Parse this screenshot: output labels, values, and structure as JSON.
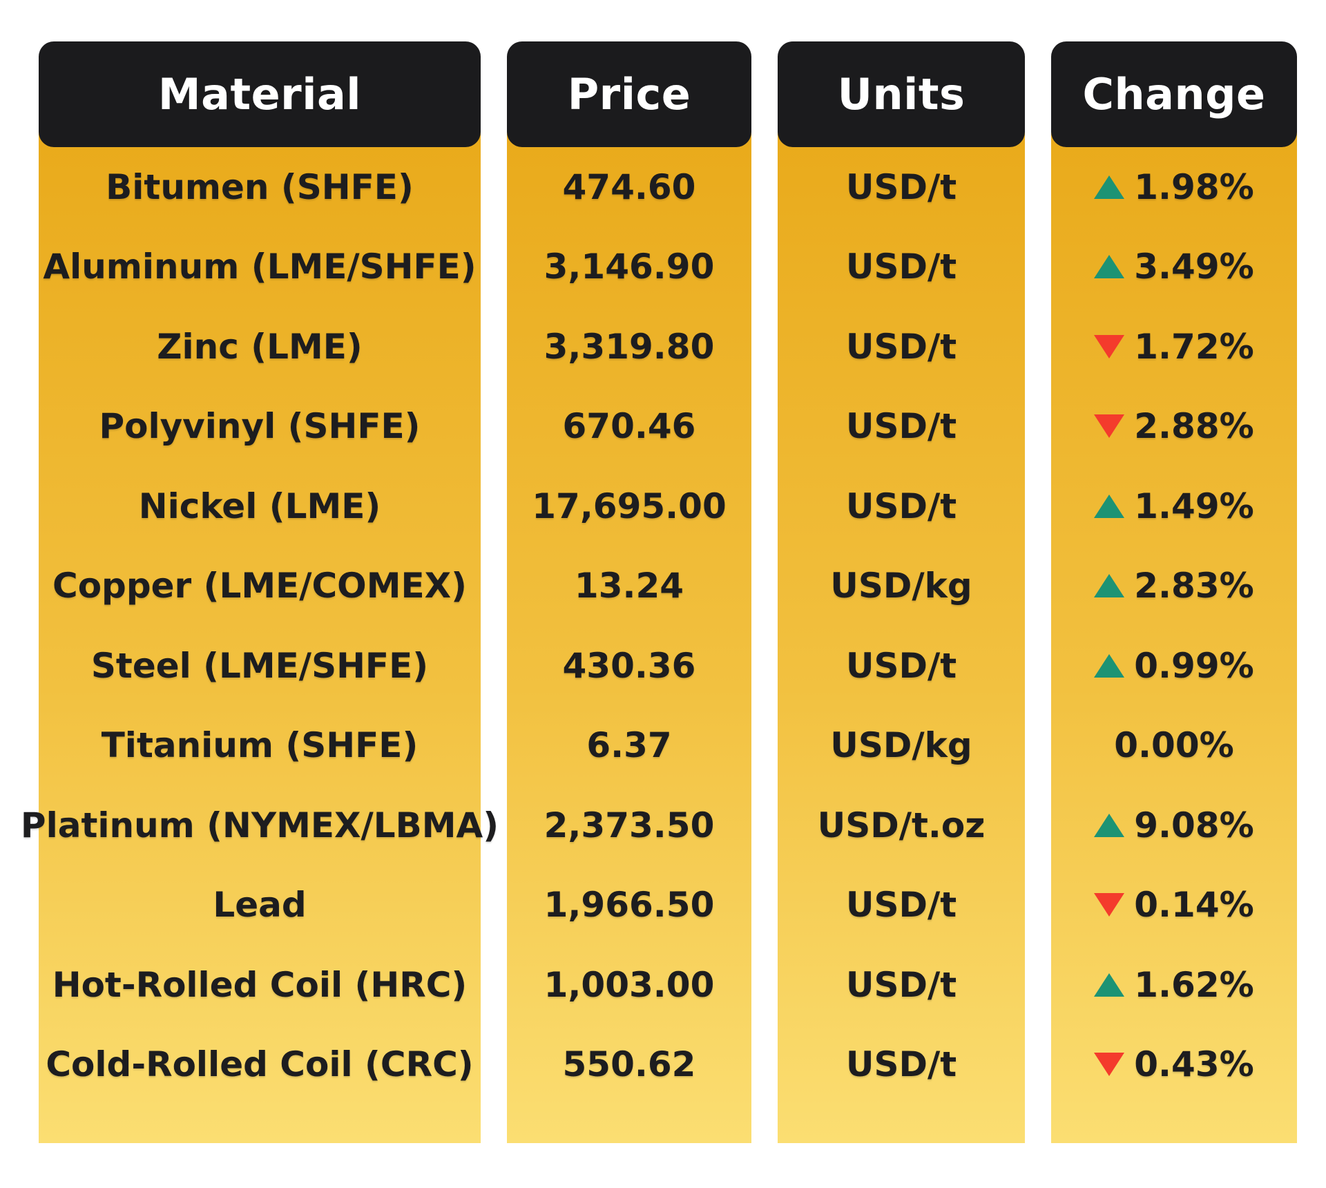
{
  "colors": {
    "header_bg": "#1b1b1d",
    "gold_top": "#e9aa1b",
    "gold_mid": "#f2c140",
    "gold_bottom": "#fbde72",
    "text_dark": "#1d1d1f",
    "up": "#1d9374",
    "down": "#f43b2c",
    "header_text": "#ffffff",
    "page_bg": "#ffffff"
  },
  "chart_data": {
    "type": "table",
    "headers": {
      "material": "Material",
      "price": "Price",
      "units": "Units",
      "change": "Change"
    },
    "rows": [
      {
        "material": "Bitumen (SHFE)",
        "price": "474.60",
        "units": "USD/t",
        "change": "1.98%",
        "direction": "up"
      },
      {
        "material": "Aluminum (LME/SHFE)",
        "price": "3,146.90",
        "units": "USD/t",
        "change": "3.49%",
        "direction": "up"
      },
      {
        "material": "Zinc (LME)",
        "price": "3,319.80",
        "units": "USD/t",
        "change": "1.72%",
        "direction": "down"
      },
      {
        "material": "Polyvinyl (SHFE)",
        "price": "670.46",
        "units": "USD/t",
        "change": "2.88%",
        "direction": "down"
      },
      {
        "material": "Nickel (LME)",
        "price": "17,695.00",
        "units": "USD/t",
        "change": "1.49%",
        "direction": "up"
      },
      {
        "material": "Copper (LME/COMEX)",
        "price": "13.24",
        "units": "USD/kg",
        "change": "2.83%",
        "direction": "up"
      },
      {
        "material": "Steel (LME/SHFE)",
        "price": "430.36",
        "units": "USD/t",
        "change": "0.99%",
        "direction": "up"
      },
      {
        "material": "Titanium (SHFE)",
        "price": "6.37",
        "units": "USD/kg",
        "change": "0.00%",
        "direction": "flat"
      },
      {
        "material": "Platinum (NYMEX/LBMA)",
        "price": "2,373.50",
        "units": "USD/t.oz",
        "change": "9.08%",
        "direction": "up"
      },
      {
        "material": "Lead",
        "price": "1,966.50",
        "units": "USD/t",
        "change": "0.14%",
        "direction": "down"
      },
      {
        "material": "Hot-Rolled Coil (HRC)",
        "price": "1,003.00",
        "units": "USD/t",
        "change": "1.62%",
        "direction": "up"
      },
      {
        "material": "Cold-Rolled Coil (CRC)",
        "price": "550.62",
        "units": "USD/t",
        "change": "0.43%",
        "direction": "down"
      }
    ]
  }
}
